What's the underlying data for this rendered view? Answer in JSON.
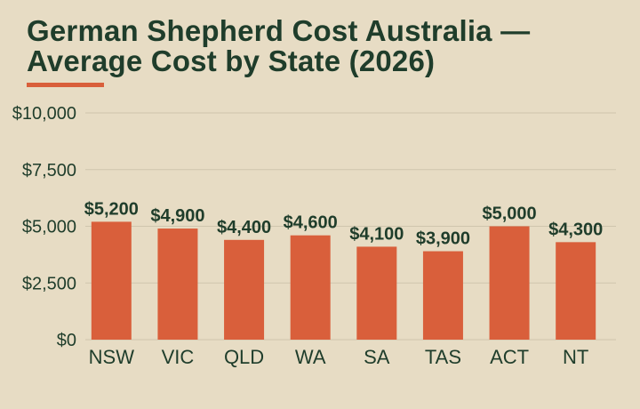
{
  "chart_data": {
    "type": "bar",
    "title_lines": [
      "German Shepherd Cost Australia —",
      "Average Cost by State (2026)"
    ],
    "categories": [
      "NSW",
      "VIC",
      "QLD",
      "WA",
      "SA",
      "TAS",
      "ACT",
      "NT"
    ],
    "values": [
      5200,
      4900,
      4400,
      4600,
      4100,
      3900,
      5000,
      4300
    ],
    "value_labels": [
      "$5,200",
      "$4,900",
      "$4,400",
      "$4,600",
      "$4,100",
      "$3,900",
      "$5,000",
      "$4,300"
    ],
    "yticks": [
      0,
      2500,
      5000,
      7500,
      10000
    ],
    "ytick_labels": [
      "$0",
      "$2,500",
      "$5,000",
      "$7,500",
      "$10,000"
    ],
    "ylim": [
      0,
      10000
    ],
    "xlabel": "",
    "ylabel": "",
    "grid": true,
    "legend": "none"
  },
  "colors": {
    "background": "#e7dcc4",
    "bar": "#d95f3b",
    "text": "#1f3d2b",
    "grid": "#cfc5ad",
    "accent": "#d95f3b"
  }
}
